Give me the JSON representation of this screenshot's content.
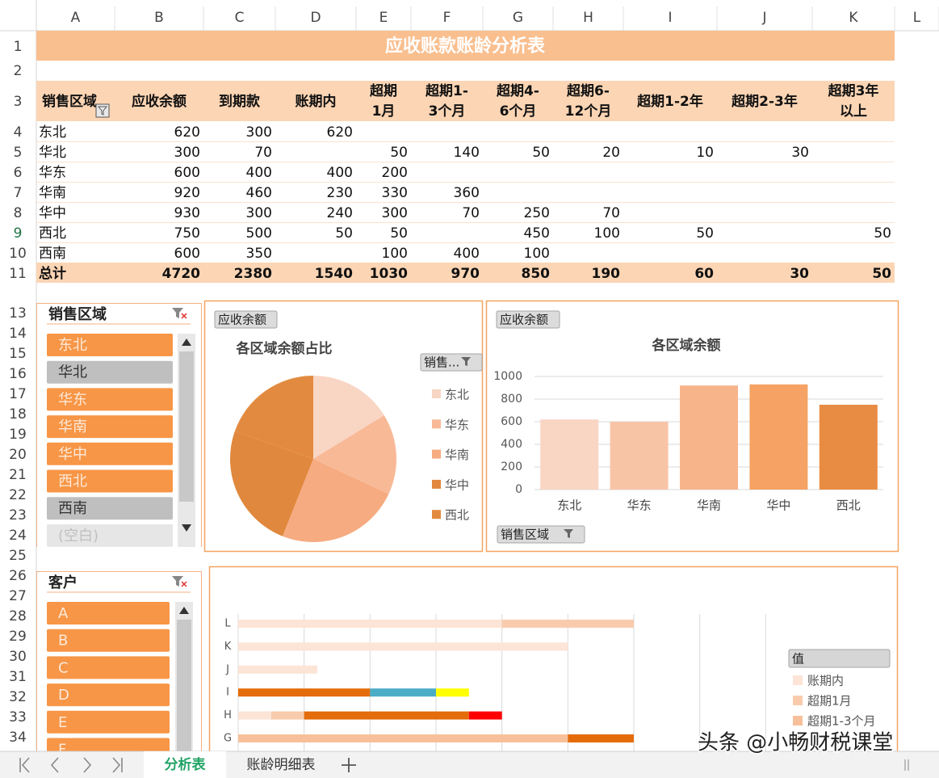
{
  "columns": [
    "A",
    "B",
    "C",
    "D",
    "E",
    "F",
    "G",
    "H",
    "I",
    "J",
    "K",
    "L"
  ],
  "row_numbers": [
    1,
    2,
    3,
    4,
    5,
    6,
    7,
    8,
    9,
    10,
    11,
    13,
    14,
    15,
    16,
    17,
    18,
    19,
    20,
    21,
    22,
    23,
    24,
    25,
    26,
    27,
    28,
    29,
    30,
    31,
    32,
    33,
    34
  ],
  "active_row": 9,
  "table": {
    "title": "应收账款账龄分析表",
    "header": [
      [
        "销售区域"
      ],
      [
        "应收余额"
      ],
      [
        "到期款"
      ],
      [
        "账期内"
      ],
      [
        "超期",
        "1月"
      ],
      [
        "超期1-",
        "3个月"
      ],
      [
        "超期4-",
        "6个月"
      ],
      [
        "超期6-",
        "12个月"
      ],
      [
        "超期1-2年"
      ],
      [
        "超期2-3年"
      ],
      [
        "超期3年",
        "以上"
      ]
    ],
    "rows": [
      [
        "东北",
        620,
        300,
        620,
        null,
        null,
        null,
        null,
        null,
        null,
        null
      ],
      [
        "华北",
        300,
        70,
        null,
        50,
        140,
        50,
        20,
        10,
        30,
        null
      ],
      [
        "华东",
        600,
        400,
        400,
        200,
        null,
        null,
        null,
        null,
        null,
        null
      ],
      [
        "华南",
        920,
        460,
        230,
        330,
        360,
        null,
        null,
        null,
        null,
        null
      ],
      [
        "华中",
        930,
        300,
        240,
        300,
        70,
        250,
        70,
        null,
        null,
        null
      ],
      [
        "西北",
        750,
        500,
        50,
        50,
        null,
        450,
        100,
        50,
        null,
        50
      ],
      [
        "西南",
        600,
        350,
        null,
        100,
        400,
        100,
        null,
        null,
        null,
        null
      ]
    ],
    "total": [
      "总计",
      4720,
      2380,
      1540,
      1030,
      970,
      850,
      190,
      60,
      30,
      50
    ]
  },
  "slicers": [
    {
      "title": "销售区域",
      "items": [
        {
          "label": "东北",
          "state": "selected"
        },
        {
          "label": "华北",
          "state": "unselected"
        },
        {
          "label": "华东",
          "state": "selected"
        },
        {
          "label": "华南",
          "state": "selected"
        },
        {
          "label": "华中",
          "state": "selected"
        },
        {
          "label": "西北",
          "state": "selected"
        },
        {
          "label": "西南",
          "state": "unselected"
        },
        {
          "label": "(空白)",
          "state": "empty"
        }
      ]
    },
    {
      "title": "客户",
      "items": [
        {
          "label": "A",
          "state": "selected"
        },
        {
          "label": "B",
          "state": "selected"
        },
        {
          "label": "C",
          "state": "selected"
        },
        {
          "label": "D",
          "state": "selected"
        },
        {
          "label": "E",
          "state": "selected"
        },
        {
          "label": "F",
          "state": "selected"
        }
      ]
    }
  ],
  "chart_data": [
    {
      "type": "pie",
      "field_button": "应收余额",
      "title": "各区域余额占比",
      "legend_button": "销售...",
      "categories": [
        "东北",
        "华东",
        "华南",
        "华中",
        "西北"
      ],
      "values": [
        620,
        600,
        920,
        930,
        750
      ],
      "colors": [
        "#f9d5c4",
        "#f8b996",
        "#f6ab80",
        "#e0883d",
        "#e28b40"
      ]
    },
    {
      "type": "bar",
      "field_button": "应收余额",
      "title": "各区域余额",
      "axis_button": "销售区域",
      "categories": [
        "东北",
        "华东",
        "华南",
        "华中",
        "西北"
      ],
      "values": [
        620,
        600,
        920,
        930,
        750
      ],
      "colors": [
        "#f9d5c4",
        "#f8c4a6",
        "#f7b48a",
        "#f5a264",
        "#e98c43"
      ],
      "ylim": [
        0,
        1000
      ],
      "yticks": [
        0,
        200,
        400,
        600,
        800,
        1000
      ],
      "grid": true
    },
    {
      "type": "stacked_barh",
      "legend_title": "值",
      "categories": [
        "G",
        "H",
        "I",
        "J",
        "K",
        "L"
      ],
      "xlim": [
        0,
        900
      ],
      "xticks": [
        0,
        100,
        200,
        300,
        400,
        500,
        600,
        700,
        800
      ],
      "grid": true,
      "series": [
        {
          "name": "账期内",
          "color": "#fce4d6",
          "values": [
            null,
            50,
            null,
            120,
            500,
            400
          ]
        },
        {
          "name": "超期1月",
          "color": "#f8cbad",
          "values": [
            null,
            50,
            null,
            null,
            null,
            200
          ]
        },
        {
          "name": "超期1-3个月",
          "color": "#f7c09a",
          "values": [
            500,
            null,
            null,
            null,
            null,
            null
          ]
        },
        {
          "color": "#e46c0a",
          "values": [
            100,
            250,
            200,
            null,
            null,
            null
          ]
        },
        {
          "color": "#4bacc6",
          "values": [
            null,
            null,
            100,
            null,
            null,
            null
          ]
        },
        {
          "color": "#ffff00",
          "values": [
            null,
            null,
            50,
            null,
            null,
            null
          ]
        },
        {
          "color": "#ff0000",
          "values": [
            null,
            50,
            null,
            null,
            null,
            null
          ]
        }
      ]
    }
  ],
  "tabs": [
    {
      "label": "分析表",
      "active": true
    },
    {
      "label": "账龄明细表",
      "active": false
    }
  ],
  "watermark": "头条 @小畅财税课堂"
}
